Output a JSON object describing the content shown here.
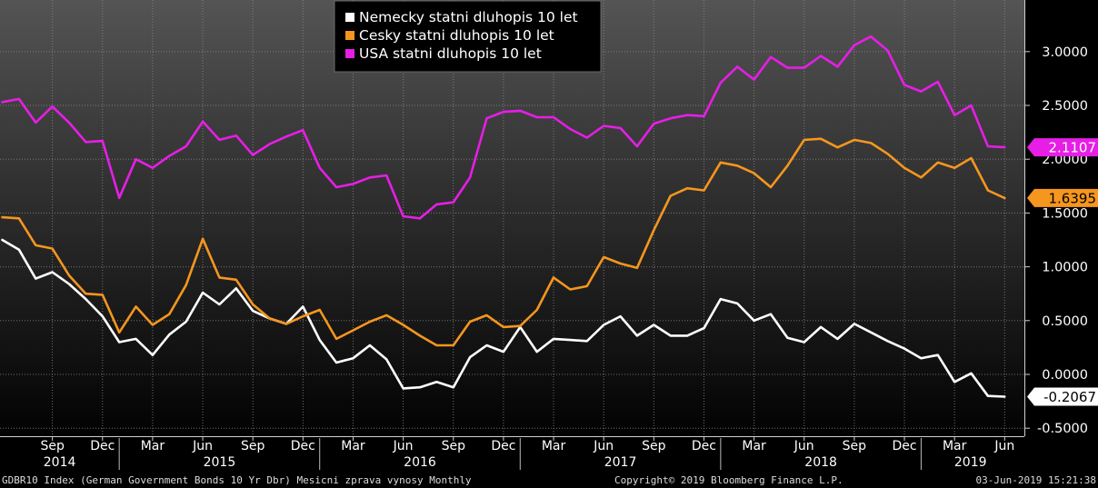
{
  "footer": {
    "left": "GDBR10 Index (German Government Bonds 10 Yr Dbr) Mesicni zprava vynosy  Monthly",
    "center": "Copyright© 2019 Bloomberg Finance L.P.",
    "right": "03-Jun-2019 15:21:38"
  },
  "chart_data": {
    "type": "line",
    "x": [
      "2014-06",
      "2014-07",
      "2014-08",
      "2014-09",
      "2014-10",
      "2014-11",
      "2014-12",
      "2015-01",
      "2015-02",
      "2015-03",
      "2015-04",
      "2015-05",
      "2015-06",
      "2015-07",
      "2015-08",
      "2015-09",
      "2015-10",
      "2015-11",
      "2015-12",
      "2016-01",
      "2016-02",
      "2016-03",
      "2016-04",
      "2016-05",
      "2016-06",
      "2016-07",
      "2016-08",
      "2016-09",
      "2016-10",
      "2016-11",
      "2016-12",
      "2017-01",
      "2017-02",
      "2017-03",
      "2017-04",
      "2017-05",
      "2017-06",
      "2017-07",
      "2017-08",
      "2017-09",
      "2017-10",
      "2017-11",
      "2017-12",
      "2018-01",
      "2018-02",
      "2018-03",
      "2018-04",
      "2018-05",
      "2018-06",
      "2018-07",
      "2018-08",
      "2018-09",
      "2018-10",
      "2018-11",
      "2018-12",
      "2019-01",
      "2019-02",
      "2019-03",
      "2019-04",
      "2019-05",
      "2019-06"
    ],
    "series": [
      {
        "name": "Nemecky statni dluhopis 10 let",
        "color": "#ffffff",
        "last_label": "-0.2067",
        "values": [
          1.25,
          1.16,
          0.89,
          0.95,
          0.84,
          0.7,
          0.54,
          0.3,
          0.33,
          0.18,
          0.37,
          0.49,
          0.76,
          0.65,
          0.8,
          0.59,
          0.52,
          0.47,
          0.63,
          0.32,
          0.11,
          0.15,
          0.27,
          0.14,
          -0.13,
          -0.12,
          -0.07,
          -0.12,
          0.16,
          0.27,
          0.21,
          0.44,
          0.21,
          0.33,
          0.32,
          0.31,
          0.46,
          0.54,
          0.36,
          0.46,
          0.36,
          0.36,
          0.43,
          0.7,
          0.66,
          0.5,
          0.56,
          0.34,
          0.3,
          0.44,
          0.33,
          0.47,
          0.39,
          0.31,
          0.24,
          0.15,
          0.18,
          -0.07,
          0.01,
          -0.2,
          -0.2067
        ]
      },
      {
        "name": "Cesky statni dluhopis 10 let",
        "color": "#f5961e",
        "last_label": "1.6395",
        "values": [
          1.46,
          1.45,
          1.2,
          1.17,
          0.92,
          0.75,
          0.74,
          0.39,
          0.63,
          0.46,
          0.56,
          0.83,
          1.26,
          0.9,
          0.88,
          0.65,
          0.52,
          0.47,
          0.54,
          0.6,
          0.33,
          0.41,
          0.49,
          0.55,
          0.46,
          0.36,
          0.27,
          0.27,
          0.49,
          0.55,
          0.44,
          0.45,
          0.6,
          0.9,
          0.79,
          0.82,
          1.09,
          1.03,
          0.99,
          1.34,
          1.66,
          1.73,
          1.71,
          1.97,
          1.94,
          1.87,
          1.74,
          1.94,
          2.18,
          2.19,
          2.11,
          2.18,
          2.15,
          2.05,
          1.92,
          1.83,
          1.97,
          1.92,
          2.01,
          1.71,
          1.6395
        ]
      },
      {
        "name": "USA statni dluhopis 10 let",
        "color": "#e61ee6",
        "last_label": "2.1107",
        "values": [
          2.53,
          2.56,
          2.34,
          2.49,
          2.34,
          2.16,
          2.17,
          1.64,
          2.0,
          1.92,
          2.03,
          2.12,
          2.35,
          2.18,
          2.22,
          2.04,
          2.14,
          2.21,
          2.27,
          1.92,
          1.74,
          1.77,
          1.83,
          1.85,
          1.47,
          1.45,
          1.58,
          1.6,
          1.83,
          2.38,
          2.44,
          2.45,
          2.39,
          2.39,
          2.28,
          2.2,
          2.31,
          2.29,
          2.12,
          2.33,
          2.38,
          2.41,
          2.4,
          2.71,
          2.86,
          2.74,
          2.95,
          2.85,
          2.85,
          2.96,
          2.86,
          3.06,
          3.14,
          3.01,
          2.69,
          2.63,
          2.72,
          2.41,
          2.5,
          2.12,
          2.1107
        ]
      }
    ],
    "y_ticks": [
      "-0.5000",
      "0.0000",
      "0.5000",
      "1.0000",
      "1.5000",
      "2.0000",
      "2.5000",
      "3.0000"
    ],
    "ylim": [
      -0.6,
      3.45
    ],
    "month_ticks": [
      {
        "label": "Sep",
        "date": "2014-09"
      },
      {
        "label": "Dec",
        "date": "2014-12"
      },
      {
        "label": "Mar",
        "date": "2015-03"
      },
      {
        "label": "Jun",
        "date": "2015-06"
      },
      {
        "label": "Sep",
        "date": "2015-09"
      },
      {
        "label": "Dec",
        "date": "2015-12"
      },
      {
        "label": "Mar",
        "date": "2016-03"
      },
      {
        "label": "Jun",
        "date": "2016-06"
      },
      {
        "label": "Sep",
        "date": "2016-09"
      },
      {
        "label": "Dec",
        "date": "2016-12"
      },
      {
        "label": "Mar",
        "date": "2017-03"
      },
      {
        "label": "Jun",
        "date": "2017-06"
      },
      {
        "label": "Sep",
        "date": "2017-09"
      },
      {
        "label": "Dec",
        "date": "2017-12"
      },
      {
        "label": "Mar",
        "date": "2018-03"
      },
      {
        "label": "Jun",
        "date": "2018-06"
      },
      {
        "label": "Sep",
        "date": "2018-09"
      },
      {
        "label": "Dec",
        "date": "2018-12"
      },
      {
        "label": "Mar",
        "date": "2019-03"
      },
      {
        "label": "Jun",
        "date": "2019-06"
      }
    ],
    "year_labels": [
      "2014",
      "2015",
      "2016",
      "2017",
      "2018",
      "2019"
    ],
    "legend_position": "top-center",
    "grid": true
  }
}
